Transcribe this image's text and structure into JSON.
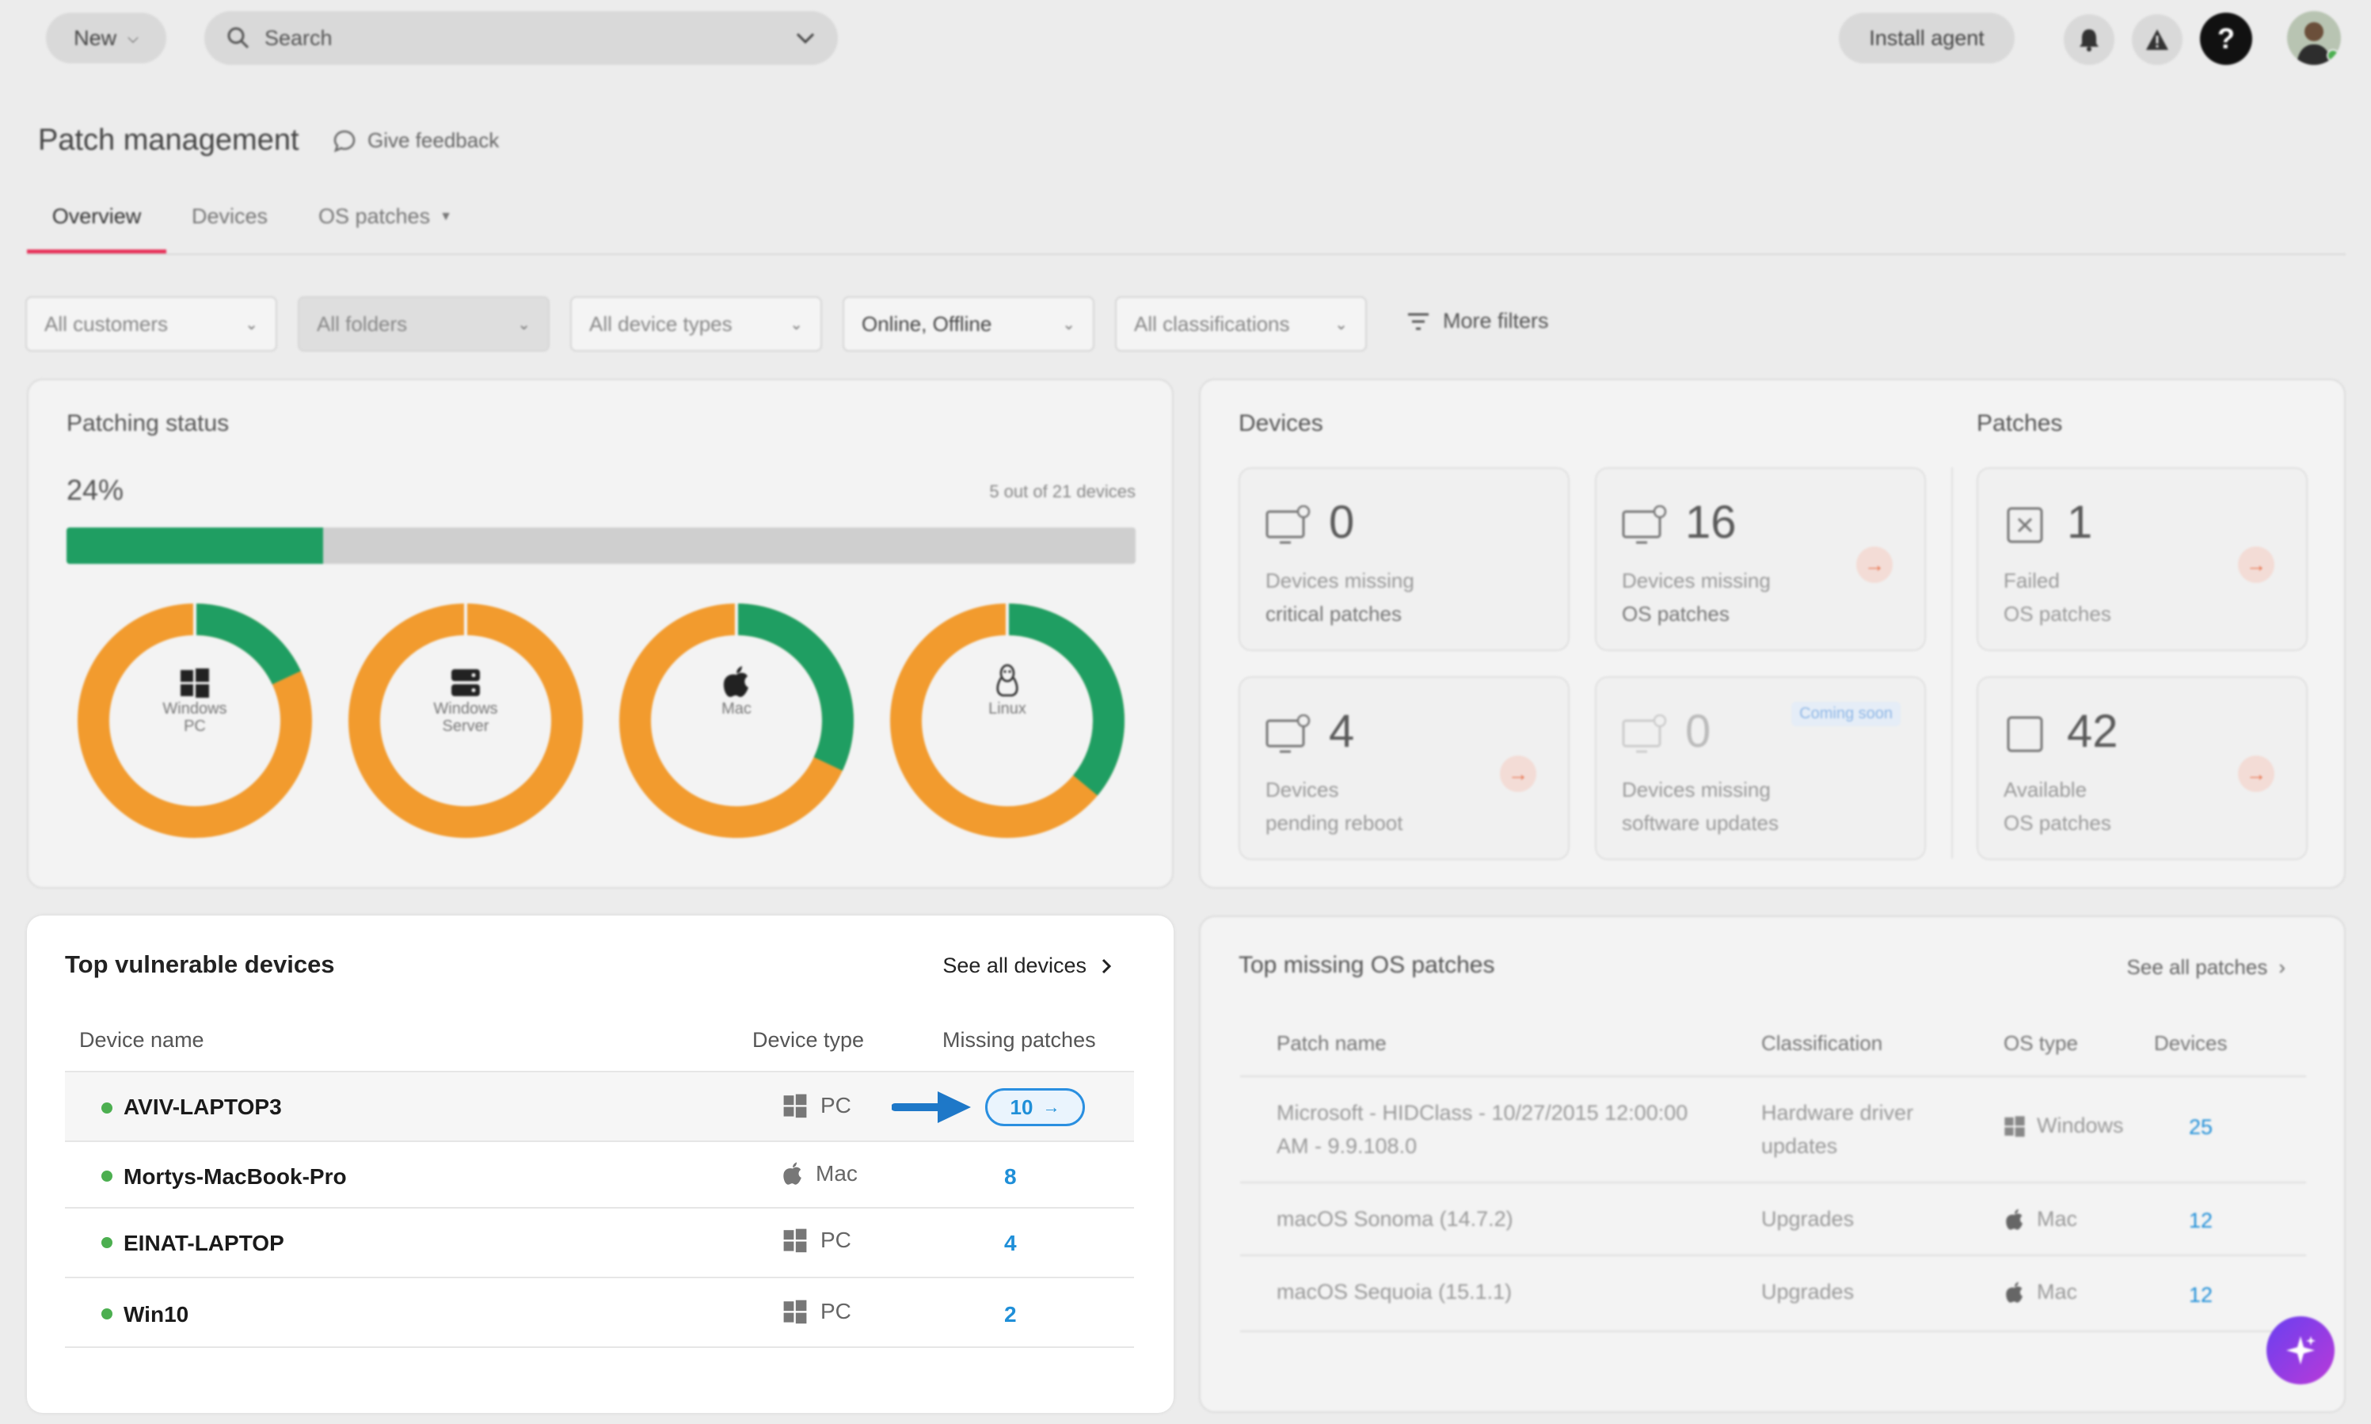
{
  "topbar": {
    "new_label": "New",
    "search_placeholder": "Search",
    "install_agent_label": "Install agent"
  },
  "page": {
    "title": "Patch management",
    "feedback_label": "Give feedback"
  },
  "tabs": [
    {
      "label": "Overview"
    },
    {
      "label": "Devices"
    },
    {
      "label": "OS patches"
    }
  ],
  "filters": {
    "customers": "All customers",
    "folders": "All folders",
    "device_types": "All device types",
    "status": "Online, Offline",
    "classifications": "All classifications",
    "more": "More filters"
  },
  "patching_status": {
    "title": "Patching status",
    "percent_label": "24%",
    "percent": 0.24,
    "summary": "5 out of 21 devices",
    "donuts": [
      {
        "label_1": "Windows",
        "label_2": "PC",
        "fraction_patched": 0.18
      },
      {
        "label_1": "Windows",
        "label_2": "Server",
        "fraction_patched": 0.0
      },
      {
        "label_1": "Mac",
        "label_2": "",
        "fraction_patched": 0.32
      },
      {
        "label_1": "Linux",
        "label_2": "",
        "fraction_patched": 0.36
      }
    ]
  },
  "devices_panel": {
    "title": "Devices",
    "patches_title": "Patches",
    "stats": [
      {
        "value": "0",
        "line1": "Devices missing",
        "line2": "critical patches"
      },
      {
        "value": "16",
        "line1": "Devices missing",
        "line2": "OS patches"
      },
      {
        "value": "1",
        "line1": "Failed",
        "line2": "OS patches"
      },
      {
        "value": "4",
        "line1": "Devices",
        "line2": "pending reboot"
      },
      {
        "value": "0",
        "line1": "Devices missing",
        "line2": "software updates",
        "badge": "Coming soon"
      },
      {
        "value": "42",
        "line1": "Available",
        "line2": "OS patches"
      }
    ]
  },
  "vulnerable": {
    "title": "Top vulnerable devices",
    "see_all": "See all devices",
    "columns": [
      "Device name",
      "Device type",
      "Missing patches"
    ],
    "rows": [
      {
        "name": "AVIV-LAPTOP3",
        "type": "PC",
        "missing": "10"
      },
      {
        "name": "Mortys-MacBook-Pro",
        "type": "Mac",
        "missing": "8"
      },
      {
        "name": "EINAT-LAPTOP",
        "type": "PC",
        "missing": "4"
      },
      {
        "name": "Win10",
        "type": "PC",
        "missing": "2"
      }
    ]
  },
  "missing_patches": {
    "title": "Top missing OS patches",
    "see_all": "See all patches",
    "columns": [
      "Patch name",
      "Classification",
      "OS type",
      "Devices"
    ],
    "rows": [
      {
        "name_1": "Microsoft - HIDClass - 10/27/2015 12:00:00",
        "name_2": "AM - 9.9.108.0",
        "class_1": "Hardware driver",
        "class_2": "updates",
        "os": "Windows",
        "devices": "25"
      },
      {
        "name_1": "macOS Sonoma (14.7.2)",
        "name_2": "",
        "class_1": "Upgrades",
        "class_2": "",
        "os": "Mac",
        "devices": "12"
      },
      {
        "name_1": "macOS Sequoia (15.1.1)",
        "name_2": "",
        "class_1": "Upgrades",
        "class_2": "",
        "os": "Mac",
        "devices": "12"
      }
    ]
  },
  "colors": {
    "patched": "#1f9e62",
    "unpatched": "#f29b2e",
    "accent": "#e8335a",
    "link": "#1f8fd8"
  }
}
